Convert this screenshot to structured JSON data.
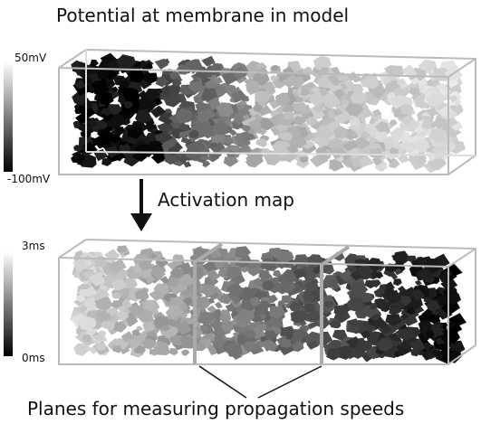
{
  "title": "Potential at membrane in model",
  "potential_panel": {
    "scale_max": "50mV",
    "scale_min": "-100mV"
  },
  "arrow_label": "Activation map",
  "activation_panel": {
    "scale_max": "3ms",
    "scale_min": "0ms"
  },
  "caption": "Planes for measuring propagation speeds"
}
